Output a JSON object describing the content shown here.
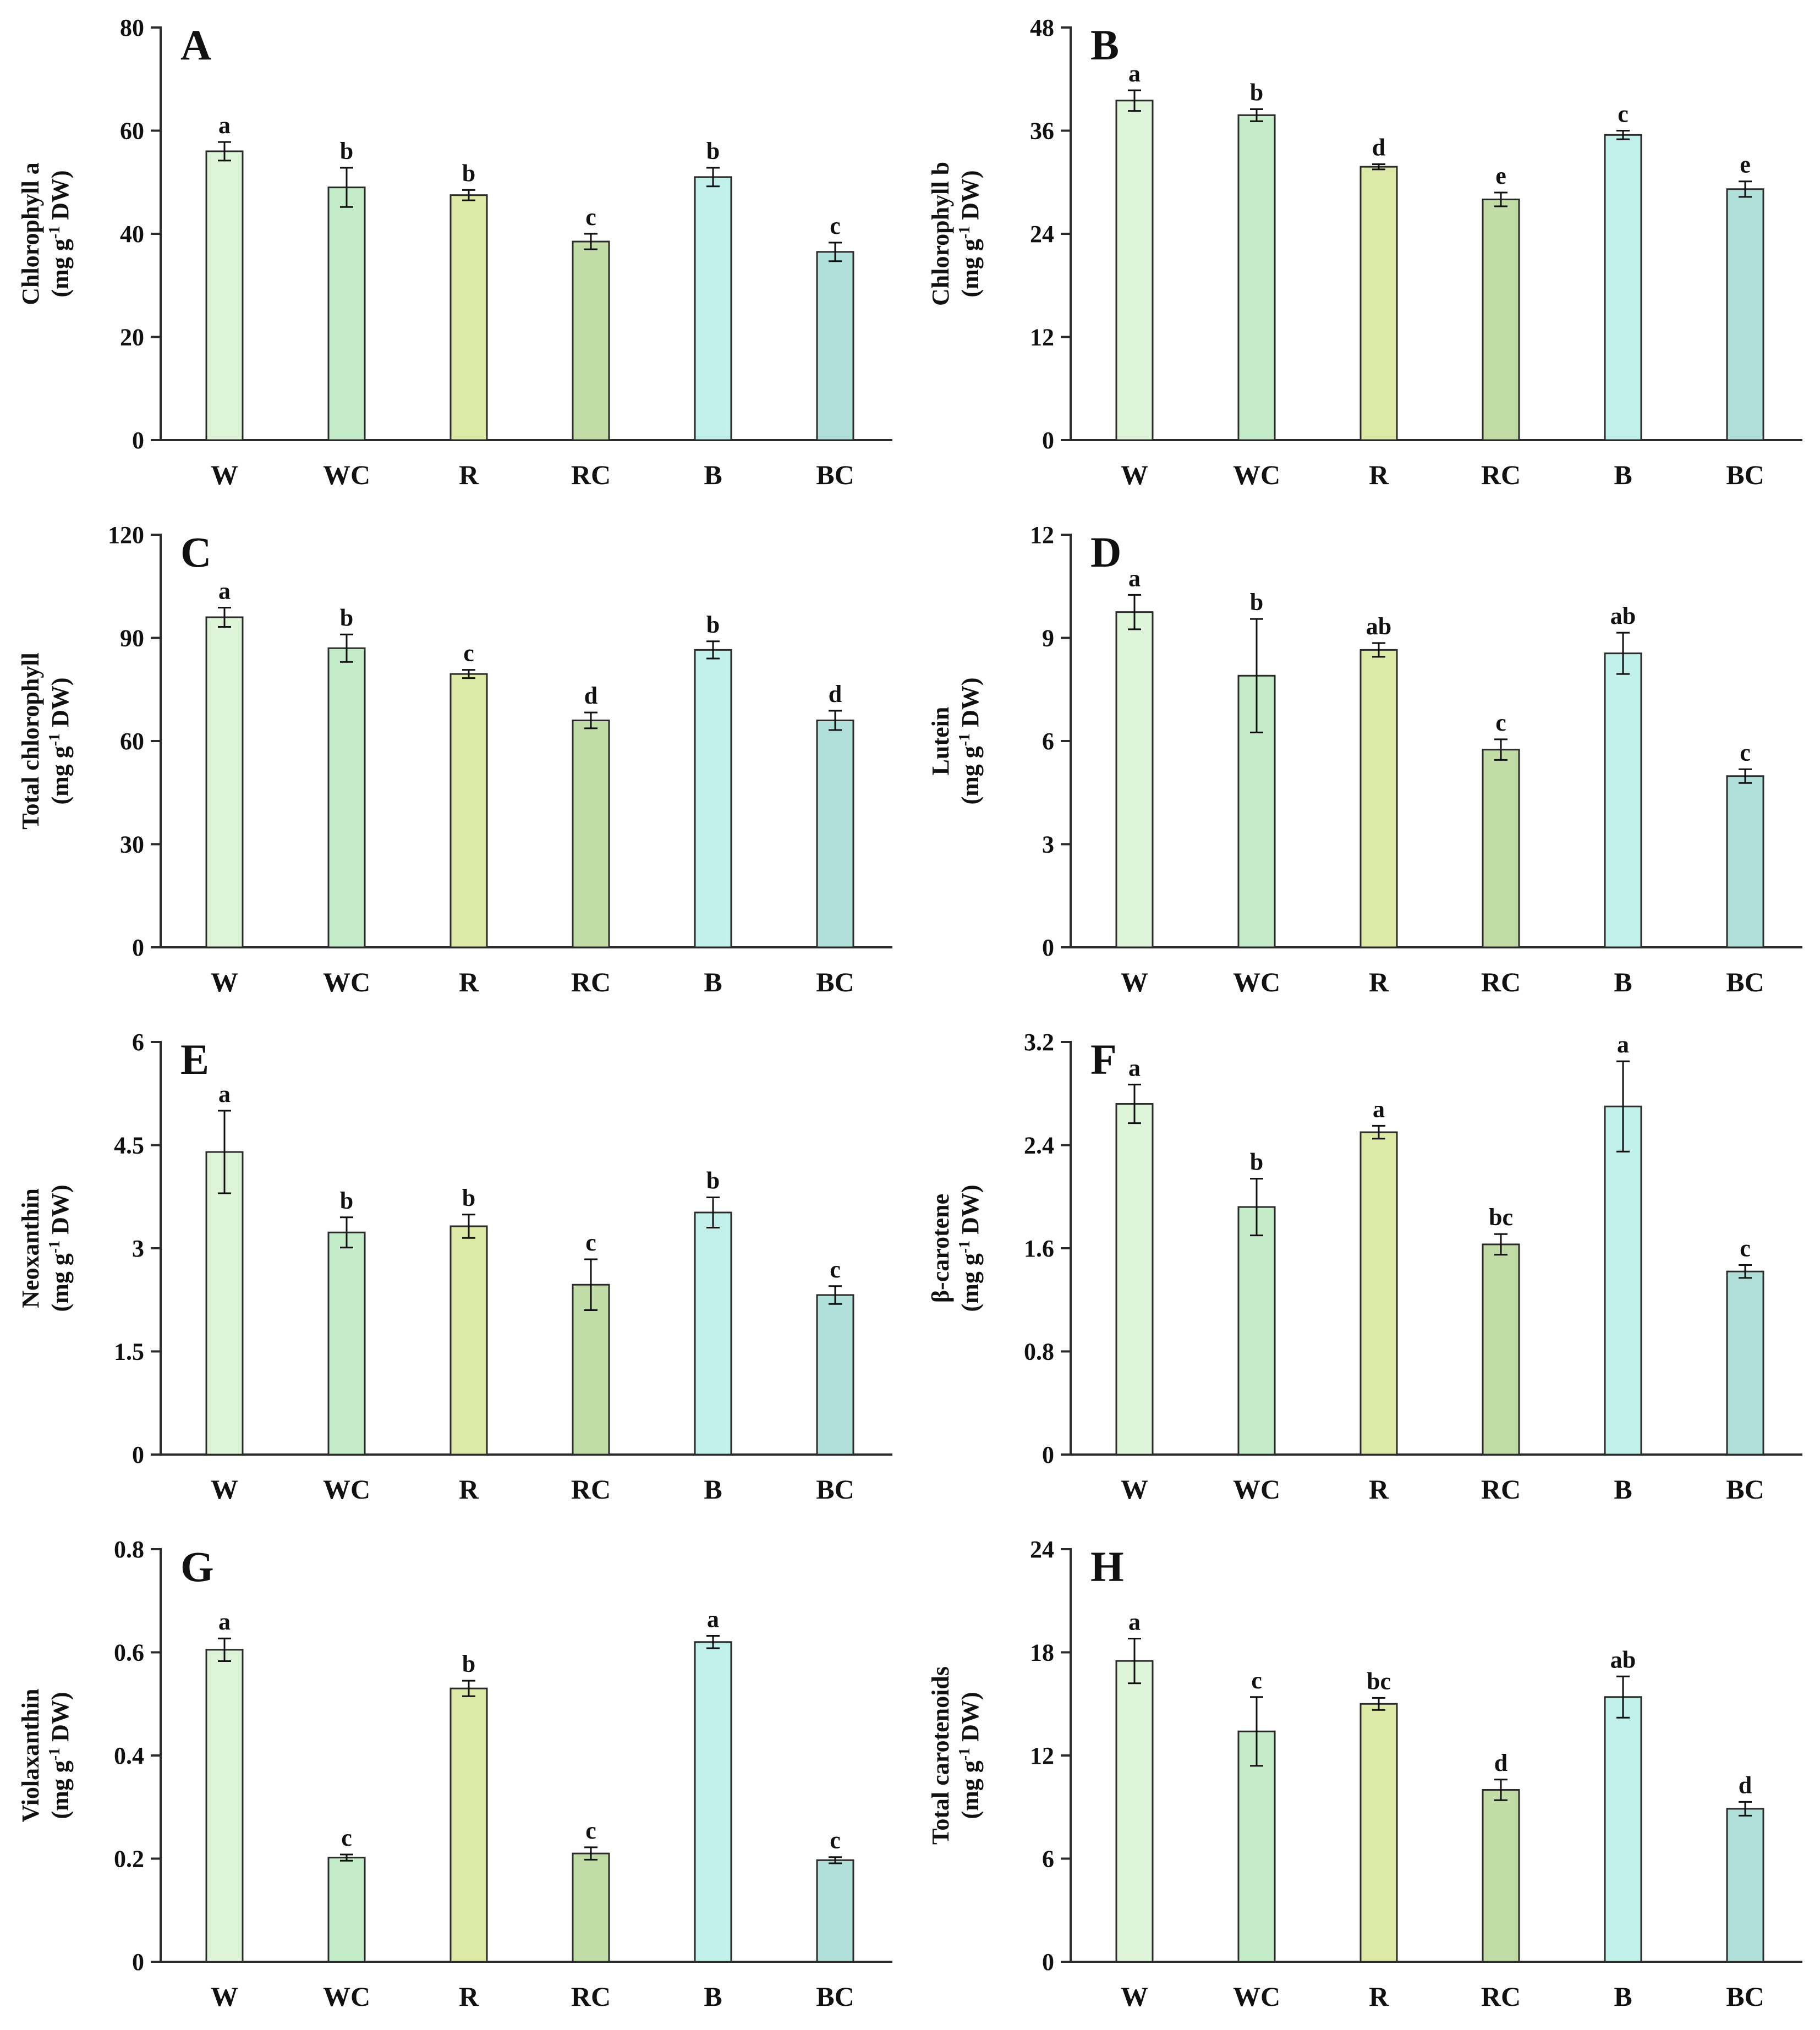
{
  "categories": [
    "W",
    "WC",
    "R",
    "RC",
    "B",
    "BC"
  ],
  "colors": {
    "bars": [
      "#dff5da",
      "#c5ecc8",
      "#dde9a6",
      "#c2dca8",
      "#c1f1ea",
      "#b1dfda"
    ],
    "stroke": "#2b2b2b"
  },
  "chart_data": [
    {
      "type": "bar",
      "letter": "A",
      "ylabel_line1": "Chlorophyll a",
      "ylabel_pre": "(mg g",
      "ylabel_sup": "-1",
      "ylabel_post": " DW)",
      "ylim": [
        0,
        80
      ],
      "ticks": [
        0,
        20,
        40,
        60,
        80
      ],
      "tick_labels": [
        "0",
        "20",
        "40",
        "60",
        "80"
      ],
      "values": [
        56,
        49,
        47.5,
        38.5,
        51,
        36.5
      ],
      "errors": [
        1.8,
        3.8,
        1.0,
        1.5,
        1.8,
        1.8
      ],
      "sig": [
        "a",
        "b",
        "b",
        "c",
        "b",
        "c"
      ]
    },
    {
      "type": "bar",
      "letter": "B",
      "ylabel_line1": "Chlorophyll b",
      "ylabel_pre": "(mg g",
      "ylabel_sup": "-1",
      "ylabel_post": " DW)",
      "ylim": [
        0,
        48
      ],
      "ticks": [
        0,
        12,
        24,
        36,
        48
      ],
      "tick_labels": [
        "0",
        "12",
        "24",
        "36",
        "48"
      ],
      "values": [
        39.5,
        37.8,
        31.8,
        28,
        35.5,
        29.2
      ],
      "errors": [
        1.2,
        0.7,
        0.3,
        0.8,
        0.5,
        0.9
      ],
      "sig": [
        "a",
        "b",
        "d",
        "e",
        "c",
        "e"
      ]
    },
    {
      "type": "bar",
      "letter": "C",
      "ylabel_line1": "Total chlorophyll",
      "ylabel_pre": "(mg g",
      "ylabel_sup": "-1",
      "ylabel_post": " DW)",
      "ylim": [
        0,
        120
      ],
      "ticks": [
        0,
        30,
        60,
        90,
        120
      ],
      "tick_labels": [
        "0",
        "30",
        "60",
        "90",
        "120"
      ],
      "values": [
        96,
        87,
        79.5,
        66,
        86.5,
        66
      ],
      "errors": [
        2.8,
        4.0,
        1.2,
        2.3,
        2.5,
        2.8
      ],
      "sig": [
        "a",
        "b",
        "c",
        "d",
        "b",
        "d"
      ]
    },
    {
      "type": "bar",
      "letter": "D",
      "ylabel_line1": "Lutein",
      "ylabel_pre": "(mg g",
      "ylabel_sup": "-1",
      "ylabel_post": " DW)",
      "ylim": [
        0,
        12
      ],
      "ticks": [
        0,
        3,
        6,
        9,
        12
      ],
      "tick_labels": [
        "0",
        "3",
        "6",
        "9",
        "12"
      ],
      "values": [
        9.75,
        7.9,
        8.65,
        5.75,
        8.55,
        4.98
      ],
      "errors": [
        0.5,
        1.65,
        0.2,
        0.3,
        0.6,
        0.2
      ],
      "sig": [
        "a",
        "b",
        "ab",
        "c",
        "ab",
        "c"
      ]
    },
    {
      "type": "bar",
      "letter": "E",
      "ylabel_line1": "Neoxanthin",
      "ylabel_pre": "(mg g",
      "ylabel_sup": "-1",
      "ylabel_post": " DW)",
      "ylim": [
        0,
        6
      ],
      "ticks": [
        0,
        1.5,
        3,
        4.5,
        6
      ],
      "tick_labels": [
        "0",
        "1.5",
        "3",
        "4.5",
        "6"
      ],
      "values": [
        4.4,
        3.23,
        3.32,
        2.47,
        3.52,
        2.32
      ],
      "errors": [
        0.6,
        0.22,
        0.17,
        0.37,
        0.22,
        0.13
      ],
      "sig": [
        "a",
        "b",
        "b",
        "c",
        "b",
        "c"
      ]
    },
    {
      "type": "bar",
      "letter": "F",
      "ylabel_line1": "β-carotene",
      "ylabel_pre": "(mg g",
      "ylabel_sup": "-1",
      "ylabel_post": " DW)",
      "ylim": [
        0,
        3.2
      ],
      "ticks": [
        0,
        0.8,
        1.6,
        2.4,
        3.2
      ],
      "tick_labels": [
        "0",
        "0.8",
        "1.6",
        "2.4",
        "3.2"
      ],
      "values": [
        2.72,
        1.92,
        2.5,
        1.63,
        2.7,
        1.42
      ],
      "errors": [
        0.15,
        0.22,
        0.05,
        0.08,
        0.35,
        0.05
      ],
      "sig": [
        "a",
        "b",
        "a",
        "bc",
        "a",
        "c"
      ]
    },
    {
      "type": "bar",
      "letter": "G",
      "ylabel_line1": "Violaxanthin",
      "ylabel_pre": "(mg g",
      "ylabel_sup": "-1",
      "ylabel_post": " DW)",
      "ylim": [
        0,
        0.8
      ],
      "ticks": [
        0,
        0.2,
        0.4,
        0.6,
        0.8
      ],
      "tick_labels": [
        "0",
        "0.2",
        "0.4",
        "0.6",
        "0.8"
      ],
      "values": [
        0.605,
        0.202,
        0.53,
        0.21,
        0.62,
        0.197
      ],
      "errors": [
        0.022,
        0.006,
        0.015,
        0.012,
        0.012,
        0.006
      ],
      "sig": [
        "a",
        "c",
        "b",
        "c",
        "a",
        "c"
      ]
    },
    {
      "type": "bar",
      "letter": "H",
      "ylabel_line1": "Total carotenoids",
      "ylabel_pre": "(mg g",
      "ylabel_sup": "-1",
      "ylabel_post": " DW)",
      "ylim": [
        0,
        24
      ],
      "ticks": [
        0,
        6,
        12,
        18,
        24
      ],
      "tick_labels": [
        "0",
        "6",
        "12",
        "18",
        "24"
      ],
      "values": [
        17.5,
        13.4,
        15,
        10,
        15.4,
        8.9
      ],
      "errors": [
        1.3,
        2.0,
        0.35,
        0.6,
        1.2,
        0.4
      ],
      "sig": [
        "a",
        "c",
        "bc",
        "d",
        "ab",
        "d"
      ]
    }
  ]
}
